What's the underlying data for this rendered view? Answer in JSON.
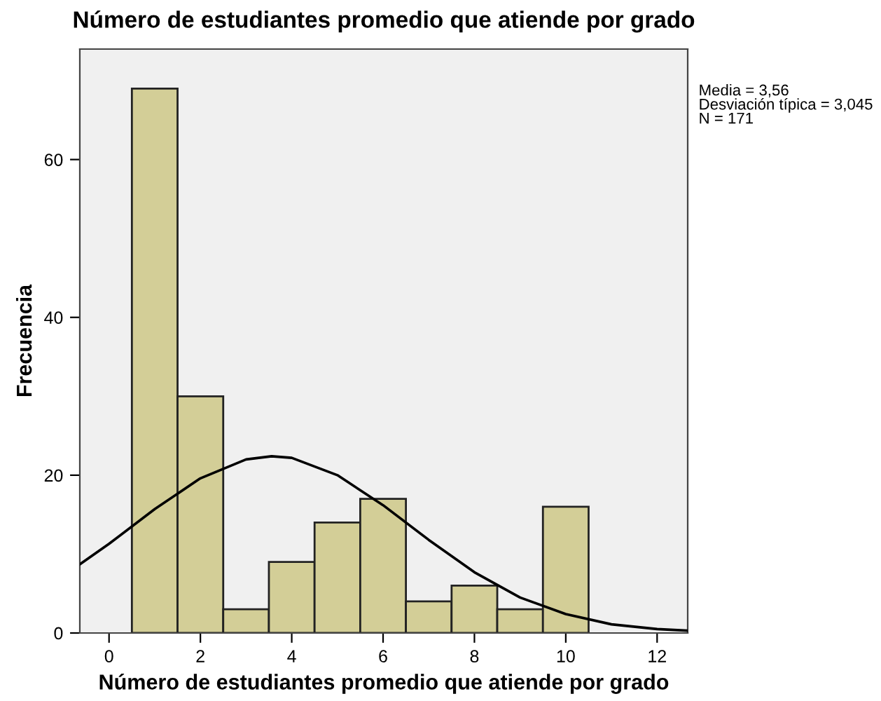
{
  "chart_data": {
    "type": "histogram",
    "title": "Número de estudiantes promedio que atiende por grado",
    "xlabel": "Número de estudiantes promedio que atiende por grado",
    "ylabel": "Frecuencia",
    "bins": [
      0.5,
      1.5,
      2.5,
      3.5,
      4.5,
      5.5,
      6.5,
      7.5,
      8.5,
      9.5,
      10.5
    ],
    "values": [
      69,
      30,
      3,
      9,
      14,
      17,
      4,
      6,
      3,
      16
    ],
    "color": "#d3ce97",
    "series": [
      {
        "type": "line",
        "color": "#000000",
        "x": [
          -0.64,
          0,
          1,
          2,
          3,
          3.56,
          4,
          5,
          6,
          7,
          8,
          9,
          10,
          11,
          12,
          12.67
        ],
        "values": [
          8.7,
          11.3,
          15.7,
          19.6,
          22.0,
          22.4,
          22.2,
          20.0,
          16.2,
          11.8,
          7.7,
          4.5,
          2.4,
          1.1,
          0.5,
          0.3
        ]
      }
    ],
    "annotations": [
      "Media = 3,56\nDesviación típica = 3,045\nN = 171"
    ],
    "xlim": [
      -0.64,
      12.67
    ],
    "ylim": [
      0,
      74
    ],
    "xticks": [
      0,
      2,
      4,
      6,
      8,
      10,
      12
    ],
    "yticks": [
      0,
      20,
      40,
      60
    ],
    "grid": false,
    "legend": false
  }
}
